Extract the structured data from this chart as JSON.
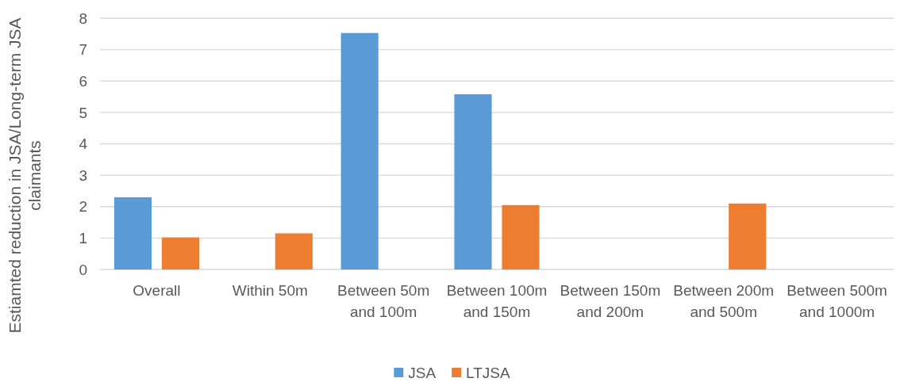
{
  "chart_data": {
    "type": "bar",
    "ylabel": "Estiamted reduction in JSA/Long-term JSA claimants",
    "categories": [
      "Overall",
      "Within 50m",
      "Between 50m and 100m",
      "Between 100m and 150m",
      "Between 150m and 200m",
      "Between 200m and 500m",
      "Between 500m and 1000m"
    ],
    "series": [
      {
        "name": "JSA",
        "color": "#5b9bd5",
        "values": [
          2.3,
          null,
          7.53,
          5.58,
          null,
          null,
          null
        ]
      },
      {
        "name": "LTJSA",
        "color": "#ed7d31",
        "values": [
          1.02,
          1.15,
          null,
          2.05,
          null,
          2.1,
          null
        ]
      }
    ],
    "ylim": [
      0,
      8
    ],
    "yticks": [
      0,
      1,
      2,
      3,
      4,
      5,
      6,
      7,
      8
    ],
    "grid": "y",
    "legend": "bottom"
  }
}
